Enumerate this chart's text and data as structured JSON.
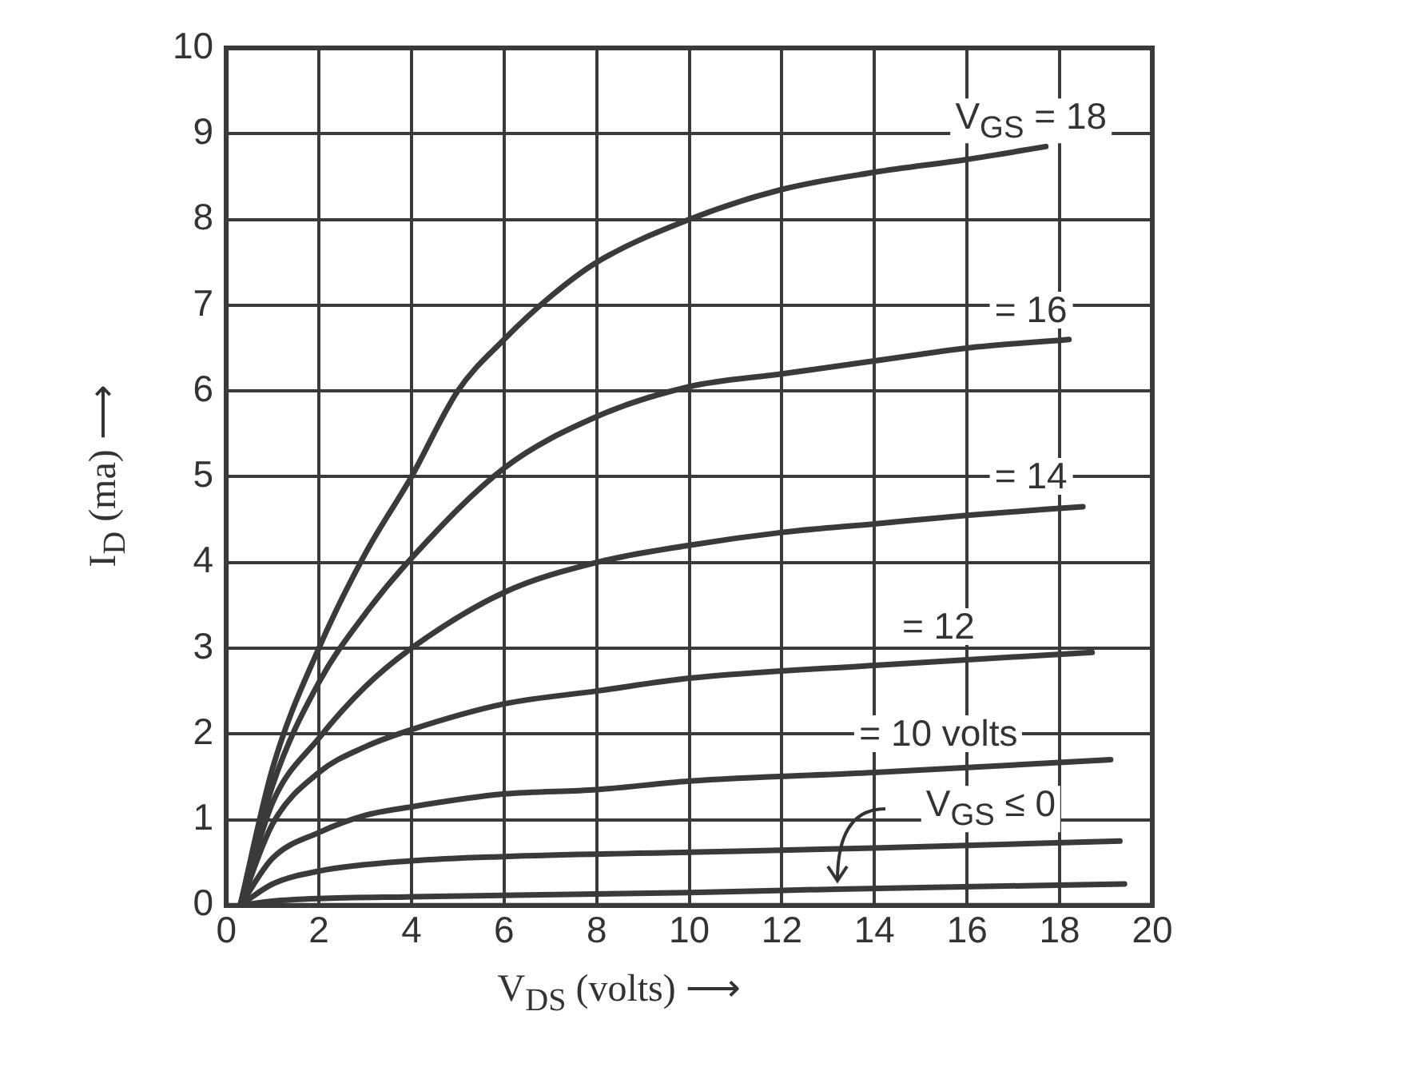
{
  "chart_data": {
    "type": "line",
    "xlabel": "V$_{DS}$ (volts) ⟶",
    "ylabel": "I$_{D}$ (ma) ⟶",
    "xlim": [
      0,
      20
    ],
    "xticks": [
      0,
      2,
      4,
      6,
      8,
      10,
      12,
      14,
      16,
      18,
      20
    ],
    "ylim": [
      0,
      10
    ],
    "yticks": [
      0,
      1,
      2,
      3,
      4,
      5,
      6,
      7,
      8,
      9,
      10
    ],
    "grid": true,
    "legend": false,
    "marker": "none",
    "series": [
      {
        "color": "#3a3a3a",
        "x": [
          0.3,
          1,
          2,
          3,
          4,
          5,
          6,
          7,
          8,
          10,
          12,
          14,
          16,
          17.7
        ],
        "values": [
          0,
          1.6,
          3.0,
          4.1,
          5.0,
          6.0,
          6.6,
          7.1,
          7.5,
          8.0,
          8.35,
          8.55,
          8.7,
          8.85
        ]
      },
      {
        "color": "#3a3a3a",
        "x": [
          0.3,
          1,
          2,
          3,
          4,
          6,
          8,
          10,
          12,
          14,
          16,
          18.2
        ],
        "values": [
          0,
          1.4,
          2.6,
          3.4,
          4.05,
          5.1,
          5.7,
          6.05,
          6.2,
          6.35,
          6.5,
          6.6
        ]
      },
      {
        "color": "#3a3a3a",
        "x": [
          0.3,
          1,
          2,
          3,
          4,
          6,
          8,
          10,
          12,
          14,
          16,
          18.5
        ],
        "values": [
          0,
          1.2,
          1.95,
          2.55,
          3.0,
          3.65,
          4.0,
          4.2,
          4.35,
          4.45,
          4.55,
          4.65
        ]
      },
      {
        "color": "#3a3a3a",
        "x": [
          0.3,
          1,
          2,
          3,
          4,
          6,
          8,
          10,
          14,
          18.7
        ],
        "values": [
          0,
          0.95,
          1.55,
          1.85,
          2.05,
          2.35,
          2.5,
          2.65,
          2.8,
          2.95
        ]
      },
      {
        "color": "#3a3a3a",
        "x": [
          0.3,
          1,
          2,
          3,
          4,
          6,
          8,
          10,
          14,
          19.1
        ],
        "values": [
          0,
          0.55,
          0.85,
          1.05,
          1.15,
          1.3,
          1.35,
          1.45,
          1.55,
          1.7
        ]
      },
      {
        "color": "#3a3a3a",
        "x": [
          0.3,
          1,
          2,
          4,
          6,
          10,
          14,
          19.3
        ],
        "values": [
          0,
          0.25,
          0.4,
          0.52,
          0.57,
          0.62,
          0.67,
          0.75
        ]
      },
      {
        "color": "#3a3a3a",
        "x": [
          0.3,
          1,
          2,
          4,
          10,
          13.2,
          19.4
        ],
        "values": [
          0,
          0.05,
          0.08,
          0.1,
          0.15,
          0.19,
          0.25
        ]
      }
    ],
    "annotations": [
      "V$_{GS}$ = 18",
      "= 16",
      "= 14",
      "= 12",
      "= 10 volts",
      {
        "text": "V$_{GS}$ ≤ 0",
        "x": 13.2,
        "y": 0.19
      }
    ]
  }
}
